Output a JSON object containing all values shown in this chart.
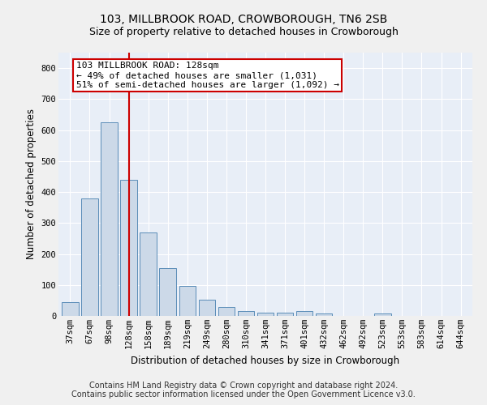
{
  "title": "103, MILLBROOK ROAD, CROWBOROUGH, TN6 2SB",
  "subtitle": "Size of property relative to detached houses in Crowborough",
  "xlabel": "Distribution of detached houses by size in Crowborough",
  "ylabel": "Number of detached properties",
  "categories": [
    "37sqm",
    "67sqm",
    "98sqm",
    "128sqm",
    "158sqm",
    "189sqm",
    "219sqm",
    "249sqm",
    "280sqm",
    "310sqm",
    "341sqm",
    "371sqm",
    "401sqm",
    "432sqm",
    "462sqm",
    "492sqm",
    "523sqm",
    "553sqm",
    "583sqm",
    "614sqm",
    "644sqm"
  ],
  "values": [
    45,
    380,
    625,
    440,
    270,
    155,
    97,
    52,
    29,
    17,
    11,
    11,
    15,
    8,
    0,
    0,
    8,
    0,
    0,
    0,
    0
  ],
  "bar_color": "#ccd9e8",
  "bar_edge_color": "#5b8db8",
  "vline_x_idx": 3,
  "vline_color": "#cc0000",
  "annotation_line1": "103 MILLBROOK ROAD: 128sqm",
  "annotation_line2": "← 49% of detached houses are smaller (1,031)",
  "annotation_line3": "51% of semi-detached houses are larger (1,092) →",
  "annotation_box_color": "#cc0000",
  "ylim": [
    0,
    850
  ],
  "yticks": [
    0,
    100,
    200,
    300,
    400,
    500,
    600,
    700,
    800
  ],
  "footer_line1": "Contains HM Land Registry data © Crown copyright and database right 2024.",
  "footer_line2": "Contains public sector information licensed under the Open Government Licence v3.0.",
  "background_color": "#e8eef7",
  "grid_color": "#ffffff",
  "fig_background": "#f0f0f0",
  "title_fontsize": 10,
  "subtitle_fontsize": 9,
  "axis_label_fontsize": 8.5,
  "tick_fontsize": 7.5,
  "annotation_fontsize": 8,
  "footer_fontsize": 7
}
